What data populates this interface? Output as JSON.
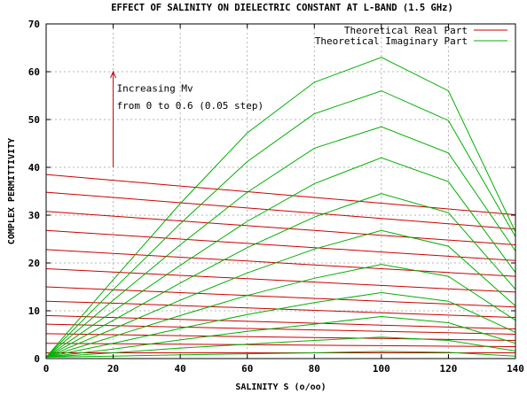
{
  "chart_data": {
    "type": "line",
    "title": "EFFECT OF SALINITY ON DIELECTRIC CONSTANT AT L-BAND (1.5 GHz)",
    "xlabel": "SALINITY S (o/oo)",
    "ylabel": "COMPLEX PERMITTIVITY",
    "xlim": [
      0,
      140
    ],
    "ylim": [
      0,
      70
    ],
    "x_ticks": [
      0,
      20,
      40,
      60,
      80,
      100,
      120,
      140
    ],
    "y_ticks": [
      0,
      10,
      20,
      30,
      40,
      50,
      60,
      70
    ],
    "grid": true,
    "legend_position": "top-right",
    "legend": [
      {
        "label": "Theoretical Real Part",
        "color": "#cc0000"
      },
      {
        "label": "Theoretical Imaginary Part",
        "color": "#00b000"
      }
    ],
    "annotation": {
      "line1": "Increasing Mv",
      "line2": "from 0 to 0.6 (0.05 step)",
      "arrow_x": 20,
      "arrow_from_y": 40,
      "arrow_to_y": 60
    },
    "x": [
      0,
      20,
      40,
      60,
      80,
      100,
      120,
      140
    ],
    "series": [
      {
        "group": "Theoretical Real Part",
        "color": "#cc0000",
        "values": [
          1.2,
          1.2,
          1.2,
          1.2,
          1.2,
          1.2,
          1.2,
          1.2
        ]
      },
      {
        "group": "Theoretical Real Part",
        "color": "#cc0000",
        "values": [
          3.2,
          3.1,
          3.0,
          2.9,
          2.8,
          2.7,
          2.6,
          2.5
        ]
      },
      {
        "group": "Theoretical Real Part",
        "color": "#cc0000",
        "values": [
          5.2,
          5.0,
          4.8,
          4.6,
          4.4,
          4.2,
          4.0,
          3.8
        ]
      },
      {
        "group": "Theoretical Real Part",
        "color": "#cc0000",
        "values": [
          7.2,
          6.9,
          6.6,
          6.3,
          6.0,
          5.7,
          5.4,
          5.1
        ]
      },
      {
        "group": "Theoretical Real Part",
        "color": "#cc0000",
        "values": [
          9.0,
          8.6,
          8.2,
          7.8,
          7.4,
          7.0,
          6.6,
          6.2
        ]
      },
      {
        "group": "Theoretical Real Part",
        "color": "#cc0000",
        "values": [
          12.0,
          11.6,
          11.1,
          10.6,
          10.1,
          9.6,
          9.1,
          8.6
        ]
      },
      {
        "group": "Theoretical Real Part",
        "color": "#cc0000",
        "values": [
          15.0,
          14.4,
          13.8,
          13.2,
          12.6,
          12.0,
          11.4,
          10.8
        ]
      },
      {
        "group": "Theoretical Real Part",
        "color": "#cc0000",
        "values": [
          18.8,
          18.1,
          17.4,
          16.7,
          16.0,
          15.3,
          14.6,
          13.9
        ]
      },
      {
        "group": "Theoretical Real Part",
        "color": "#cc0000",
        "values": [
          22.8,
          22.0,
          21.2,
          20.4,
          19.6,
          18.8,
          18.0,
          17.2
        ]
      },
      {
        "group": "Theoretical Real Part",
        "color": "#cc0000",
        "values": [
          26.8,
          25.9,
          25.0,
          24.1,
          23.2,
          22.3,
          21.4,
          20.5
        ]
      },
      {
        "group": "Theoretical Real Part",
        "color": "#cc0000",
        "values": [
          30.8,
          29.8,
          28.8,
          27.8,
          26.8,
          25.8,
          24.8,
          23.8
        ]
      },
      {
        "group": "Theoretical Real Part",
        "color": "#cc0000",
        "values": [
          34.8,
          33.7,
          32.6,
          31.5,
          30.4,
          29.3,
          28.2,
          27.1
        ]
      },
      {
        "group": "Theoretical Real Part",
        "color": "#cc0000",
        "values": [
          38.5,
          37.3,
          36.1,
          34.9,
          33.7,
          32.5,
          31.3,
          30.1
        ]
      },
      {
        "group": "Theoretical Imaginary Part",
        "color": "#00b000",
        "values": [
          0.3,
          0.5,
          0.8,
          1.0,
          1.2,
          1.5,
          1.3,
          0.5
        ]
      },
      {
        "group": "Theoretical Imaginary Part",
        "color": "#00b000",
        "values": [
          0.3,
          1.2,
          2.2,
          3.0,
          3.8,
          4.5,
          3.8,
          1.6
        ]
      },
      {
        "group": "Theoretical Imaginary Part",
        "color": "#00b000",
        "values": [
          0.3,
          2.0,
          3.9,
          5.7,
          7.2,
          8.8,
          7.5,
          3.2
        ]
      },
      {
        "group": "Theoretical Imaginary Part",
        "color": "#00b000",
        "values": [
          0.3,
          3.2,
          6.3,
          9.2,
          11.7,
          13.8,
          12.0,
          5.5
        ]
      },
      {
        "group": "Theoretical Imaginary Part",
        "color": "#00b000",
        "values": [
          0.3,
          4.6,
          9.0,
          13.2,
          16.8,
          19.7,
          17.2,
          8.0
        ]
      },
      {
        "group": "Theoretical Imaginary Part",
        "color": "#00b000",
        "values": [
          0.3,
          6.2,
          12.2,
          17.9,
          22.9,
          26.8,
          23.5,
          11.0
        ]
      },
      {
        "group": "Theoretical Imaginary Part",
        "color": "#00b000",
        "values": [
          0.3,
          8.0,
          15.8,
          23.2,
          29.6,
          34.5,
          30.5,
          14.5
        ]
      },
      {
        "group": "Theoretical Imaginary Part",
        "color": "#00b000",
        "values": [
          0.3,
          9.9,
          19.5,
          28.7,
          36.6,
          42.0,
          37.0,
          18.0
        ]
      },
      {
        "group": "Theoretical Imaginary Part",
        "color": "#00b000",
        "values": [
          0.3,
          12.2,
          23.8,
          34.8,
          44.0,
          48.5,
          43.0,
          22.5
        ]
      },
      {
        "group": "Theoretical Imaginary Part",
        "color": "#00b000",
        "values": [
          0.3,
          14.4,
          28.2,
          41.2,
          51.2,
          56.0,
          49.8,
          25.5
        ]
      },
      {
        "group": "Theoretical Imaginary Part",
        "color": "#00b000",
        "values": [
          0.3,
          16.5,
          32.4,
          47.2,
          57.8,
          63.0,
          56.0,
          26.5
        ]
      }
    ]
  }
}
